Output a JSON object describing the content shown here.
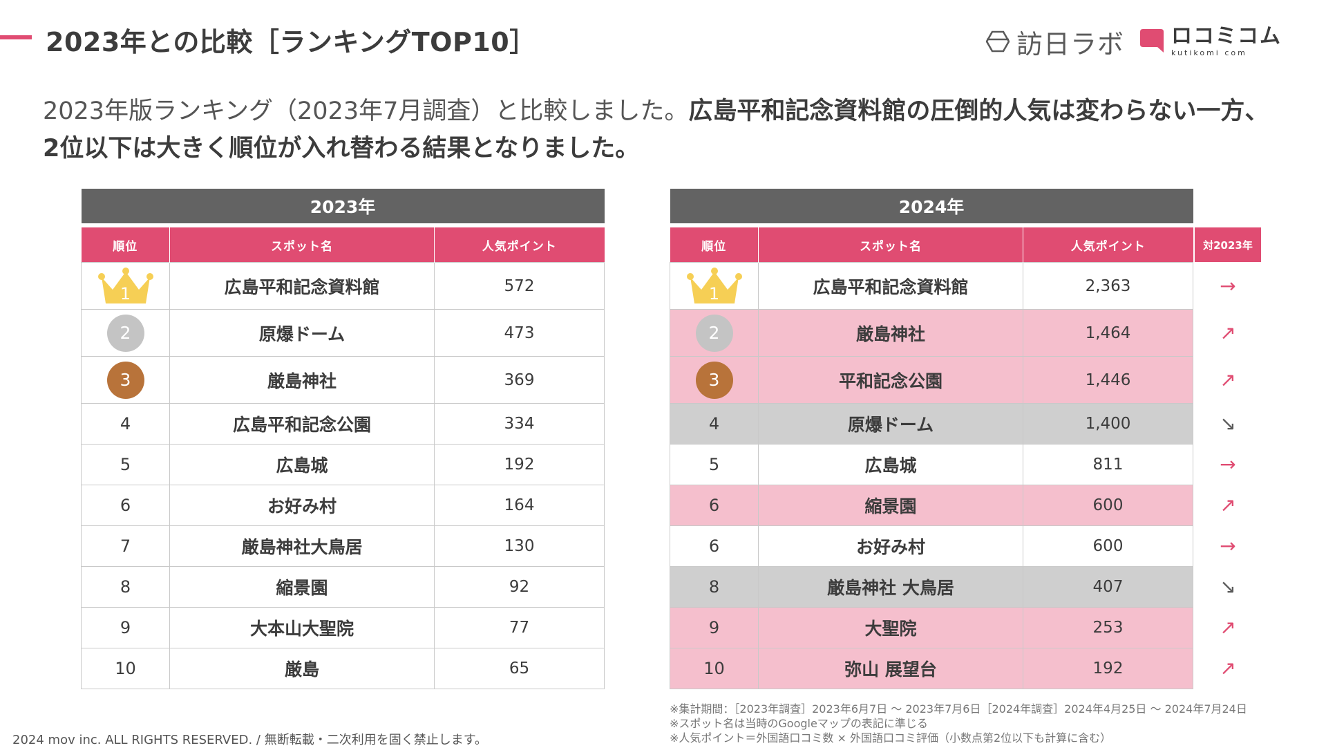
{
  "header": {
    "title": "2023年との比較［ランキングTOP10］",
    "logo_houjin": "訪日ラボ",
    "logo_kutikomi_jp": "ロコミコム",
    "logo_kutikomi_en": "kutikomi com",
    "accent_color": "#e04c72"
  },
  "lead": {
    "normal": "2023年版ランキング（2023年7月調査）と比較しました。",
    "bold": "広島平和記念資料館の圧倒的人気は変わらない一方、2位以下は大きく順位が入れ替わる結果となりました。"
  },
  "table_2023": {
    "year_label": "2023年",
    "col_rank": "順位",
    "col_spot": "スポット名",
    "col_points": "人気ポイント",
    "rows": [
      {
        "rank": "1",
        "spot": "広島平和記念資料館",
        "points": "572"
      },
      {
        "rank": "2",
        "spot": "原爆ドーム",
        "points": "473"
      },
      {
        "rank": "3",
        "spot": "厳島神社",
        "points": "369"
      },
      {
        "rank": "4",
        "spot": "広島平和記念公園",
        "points": "334"
      },
      {
        "rank": "5",
        "spot": "広島城",
        "points": "192"
      },
      {
        "rank": "6",
        "spot": "お好み村",
        "points": "164"
      },
      {
        "rank": "7",
        "spot": "厳島神社大鳥居",
        "points": "130"
      },
      {
        "rank": "8",
        "spot": "縮景園",
        "points": "92"
      },
      {
        "rank": "9",
        "spot": "大本山大聖院",
        "points": "77"
      },
      {
        "rank": "10",
        "spot": "厳島",
        "points": "65"
      }
    ]
  },
  "table_2024": {
    "year_label": "2024年",
    "col_rank": "順位",
    "col_spot": "スポット名",
    "col_points": "人気ポイント",
    "col_compare": "対2023年",
    "rows": [
      {
        "rank": "1",
        "spot": "広島平和記念資料館",
        "points": "2,363",
        "change": "→"
      },
      {
        "rank": "2",
        "spot": "厳島神社",
        "points": "1,464",
        "change": "↗"
      },
      {
        "rank": "3",
        "spot": "平和記念公園",
        "points": "1,446",
        "change": "↗"
      },
      {
        "rank": "4",
        "spot": "原爆ドーム",
        "points": "1,400",
        "change": "↘"
      },
      {
        "rank": "5",
        "spot": "広島城",
        "points": "811",
        "change": "→"
      },
      {
        "rank": "6",
        "spot": "縮景園",
        "points": "600",
        "change": "↗"
      },
      {
        "rank": "6",
        "spot": "お好み村",
        "points": "600",
        "change": "→"
      },
      {
        "rank": "8",
        "spot": "厳島神社 大鳥居",
        "points": "407",
        "change": "↘"
      },
      {
        "rank": "9",
        "spot": "大聖院",
        "points": "253",
        "change": "↗"
      },
      {
        "rank": "10",
        "spot": "弥山 展望台",
        "points": "192",
        "change": "↗"
      }
    ]
  },
  "notes": [
    "※集計期間：［2023年調査］2023年6月7日 〜 2023年7月6日［2024年調査］2024年4月25日 〜 2024年7月24日",
    "※スポット名は当時のGoogleマップの表記に準じる",
    "※人気ポイント＝外国語口コミ数 × 外国語口コミ評価（小数点第2位以下も計算に含む）"
  ],
  "footer": "2024 mov inc. ALL RIGHTS RESERVED. / 無断転載・二次利用を固く禁止します。"
}
